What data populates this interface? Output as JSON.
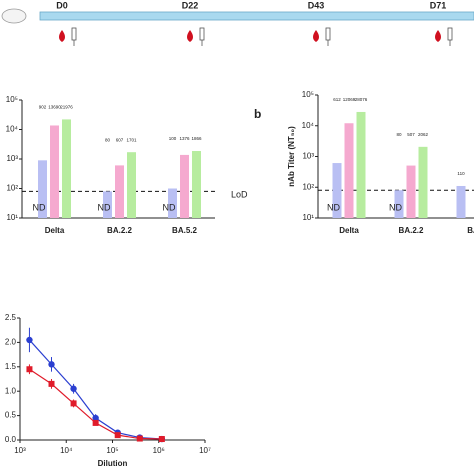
{
  "timeline": {
    "labels": [
      "D0",
      "D22",
      "D43",
      "D71"
    ]
  },
  "chart_data": [
    {
      "type": "bar",
      "log": true,
      "categories": [
        "Delta",
        "BA.2.2",
        "BA.5.2"
      ],
      "series": [
        {
          "name": null,
          "color": "#b9bff3",
          "values": [
            902,
            80,
            100
          ],
          "value_labels": [
            "902",
            "80",
            "100"
          ]
        },
        {
          "name": null,
          "color": "#f5a9cf",
          "values": [
            13690,
            607,
            1376
          ],
          "value_labels": [
            "13690",
            "607",
            "1376"
          ]
        },
        {
          "name": null,
          "color": "#b7ec9f",
          "values": [
            21976,
            1701,
            1866
          ],
          "value_labels": [
            "21976",
            "1701",
            "1866"
          ]
        }
      ],
      "nd_labels": [
        "ND",
        "ND",
        "ND"
      ],
      "lod": 80,
      "lod_label": "LoD",
      "ylim": [
        10,
        100000
      ],
      "yticks": [
        {
          "value": 100000,
          "label": "10⁵"
        },
        {
          "value": 10000,
          "label": "10⁴"
        },
        {
          "value": 1000,
          "label": "10³"
        },
        {
          "value": 100,
          "label": "10²"
        },
        {
          "value": 10,
          "label": "10¹"
        }
      ]
    },
    {
      "type": "bar",
      "log": true,
      "panel": "b",
      "ylabel": "nAb Titer (NT₅₀)",
      "categories": [
        "Delta",
        "BA.2.2",
        "BA"
      ],
      "series": [
        {
          "name": null,
          "color": "#b9bff3",
          "values": [
            612,
            80,
            110
          ],
          "value_labels": [
            "612",
            "80",
            "110"
          ]
        },
        {
          "name": null,
          "color": "#f5a9cf",
          "values": [
            12069,
            507,
            null
          ],
          "value_labels": [
            "12069",
            "507",
            null
          ]
        },
        {
          "name": null,
          "color": "#b7ec9f",
          "values": [
            28076,
            2062,
            null
          ],
          "value_labels": [
            "28076",
            "2062",
            null
          ]
        }
      ],
      "nd_labels": [
        "ND",
        "ND",
        null
      ],
      "lod": 80,
      "ylim": [
        10,
        100000
      ],
      "yticks": [
        {
          "value": 100000,
          "label": "10⁵"
        },
        {
          "value": 10000,
          "label": "10⁴"
        },
        {
          "value": 1000,
          "label": "10³"
        },
        {
          "value": 100,
          "label": "10²"
        },
        {
          "value": 10,
          "label": "10¹"
        }
      ]
    },
    {
      "type": "line",
      "xlog": true,
      "xlabel": "Dilution",
      "x": [
        1600,
        4800,
        14400,
        43200,
        129600,
        388800,
        1166400
      ],
      "series": [
        {
          "name": null,
          "color": "#2b3fd0",
          "marker": "circle",
          "values": [
            2.05,
            1.55,
            1.05,
            0.45,
            0.15,
            0.05,
            0.02
          ],
          "errors": [
            0.25,
            0.15,
            0.1,
            0.08,
            0.04,
            0.02,
            0.01
          ]
        },
        {
          "name": null,
          "color": "#e01b2a",
          "marker": "square",
          "values": [
            1.45,
            1.15,
            0.75,
            0.35,
            0.1,
            0.03,
            0.02
          ],
          "errors": [
            0.1,
            0.1,
            0.08,
            0.05,
            0.03,
            0.02,
            0.01
          ]
        }
      ],
      "xlim": [
        1000,
        10000000
      ],
      "xticks": [
        {
          "value": 1000,
          "label": "10³"
        },
        {
          "value": 10000,
          "label": "10⁴"
        },
        {
          "value": 100000,
          "label": "10⁵"
        },
        {
          "value": 1000000,
          "label": "10⁶"
        },
        {
          "value": 10000000,
          "label": "10⁷"
        }
      ],
      "ylim": [
        0,
        2.5
      ],
      "yticks": [
        2.5,
        {
          "value": 2,
          "label": "2.0"
        },
        1.5,
        {
          "value": 1,
          "label": "1.0"
        },
        0.5,
        {
          "value": 0,
          "label": "0.0"
        }
      ]
    }
  ]
}
